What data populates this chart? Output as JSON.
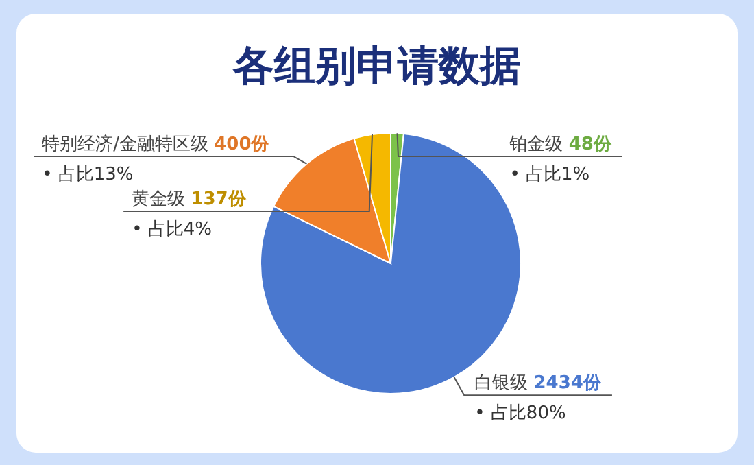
{
  "chart_data": {
    "type": "pie",
    "title": "各组别申请数据",
    "categories": [
      "铂金级",
      "白银级",
      "特别经济/金融特区级",
      "黄金级"
    ],
    "values": [
      48,
      2434,
      400,
      137
    ],
    "colors": [
      "#7cc24a",
      "#4a78cf",
      "#f07f2a",
      "#f5b800"
    ],
    "value_labels": [
      "48份",
      "2434份",
      "400份",
      "137份"
    ],
    "annotations": [
      "• 占比1%",
      "• 占比80%",
      "• 占比13%",
      "• 占比4%"
    ]
  }
}
